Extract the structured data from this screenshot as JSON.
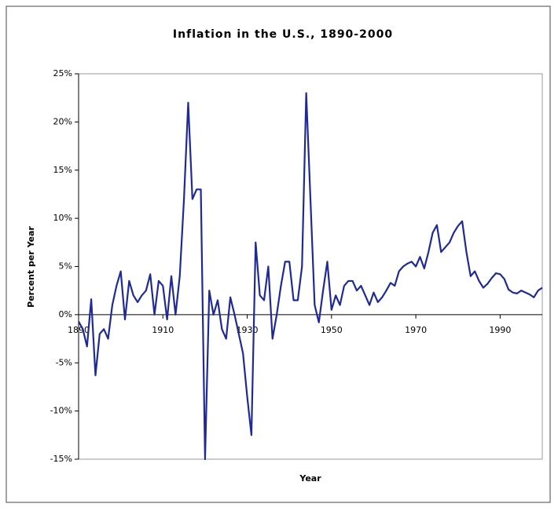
{
  "chart_data": {
    "type": "line",
    "title": "Inflation in the U.S., 1890-2000",
    "x_label": "Year",
    "y_label": "Percent per Year",
    "x": [
      1890,
      1891,
      1892,
      1893,
      1894,
      1895,
      1896,
      1897,
      1898,
      1899,
      1900,
      1901,
      1902,
      1903,
      1904,
      1905,
      1906,
      1907,
      1908,
      1909,
      1910,
      1911,
      1912,
      1913,
      1914,
      1915,
      1916,
      1917,
      1918,
      1919,
      1920,
      1921,
      1922,
      1923,
      1924,
      1925,
      1926,
      1927,
      1928,
      1929,
      1930,
      1931,
      1932,
      1933,
      1934,
      1935,
      1936,
      1937,
      1938,
      1939,
      1940,
      1941,
      1942,
      1943,
      1944,
      1945,
      1946,
      1947,
      1948,
      1949,
      1950,
      1951,
      1952,
      1953,
      1954,
      1955,
      1956,
      1957,
      1958,
      1959,
      1960,
      1961,
      1962,
      1963,
      1964,
      1965,
      1966,
      1967,
      1968,
      1969,
      1970,
      1971,
      1972,
      1973,
      1974,
      1975,
      1976,
      1977,
      1978,
      1979,
      1980,
      1981,
      1982,
      1983,
      1984,
      1985,
      1986,
      1987,
      1988,
      1989,
      1990,
      1991,
      1992,
      1993,
      1994,
      1995,
      1996,
      1997,
      1998,
      1999,
      2000
    ],
    "series": [
      {
        "name": "Inflation",
        "color": "#1f2a96",
        "values": [
          -0.7,
          -1.5,
          -3.3,
          1.6,
          -6.3,
          -2,
          -1.5,
          -2.5,
          1,
          3,
          4.5,
          -0.5,
          3.5,
          2,
          1.3,
          2,
          2.5,
          4.2,
          0,
          3.5,
          3,
          -0.5,
          4,
          0,
          4,
          12,
          22,
          12,
          13,
          13,
          -15,
          2.5,
          0,
          1.5,
          -1.5,
          -2.5,
          1.8,
          0,
          -2,
          -4,
          -8.5,
          -12.5,
          7.5,
          2,
          1.5,
          5,
          -2.5,
          0,
          3,
          5.5,
          5.5,
          1.5,
          1.5,
          5,
          23,
          12,
          1,
          -0.8,
          2.5,
          5.5,
          0.5,
          2,
          1,
          3,
          3.5,
          3.5,
          2.5,
          3,
          2,
          1,
          2.3,
          1.3,
          1.8,
          2.5,
          3.3,
          3,
          4.5,
          5,
          5.3,
          5.5,
          5,
          6,
          4.8,
          6.5,
          8.5,
          9.3,
          6.5,
          7,
          7.5,
          8.5,
          9.2,
          9.7,
          6.5,
          4,
          4.5,
          3.5,
          2.8,
          3.2,
          3.8,
          4.3,
          4.2,
          3.7,
          2.6,
          2.3,
          2.2,
          2.5,
          2.3,
          2.1,
          1.8,
          2.5,
          2.8
        ]
      }
    ],
    "xlim": [
      1890,
      2000
    ],
    "xticks": [
      1890,
      1910,
      1930,
      1950,
      1970,
      1990
    ],
    "ylim": [
      -15,
      25
    ],
    "yticks": [
      {
        "value": -15,
        "label": "-15%"
      },
      {
        "value": -10,
        "label": "-10%"
      },
      {
        "value": -5,
        "label": "-5%"
      },
      {
        "value": 0,
        "label": "0%"
      },
      {
        "value": 5,
        "label": "5%"
      },
      {
        "value": 10,
        "label": "10%"
      },
      {
        "value": 15,
        "label": "15%"
      },
      {
        "value": 20,
        "label": "20%"
      },
      {
        "value": 25,
        "label": "25%"
      }
    ],
    "grid": false
  }
}
